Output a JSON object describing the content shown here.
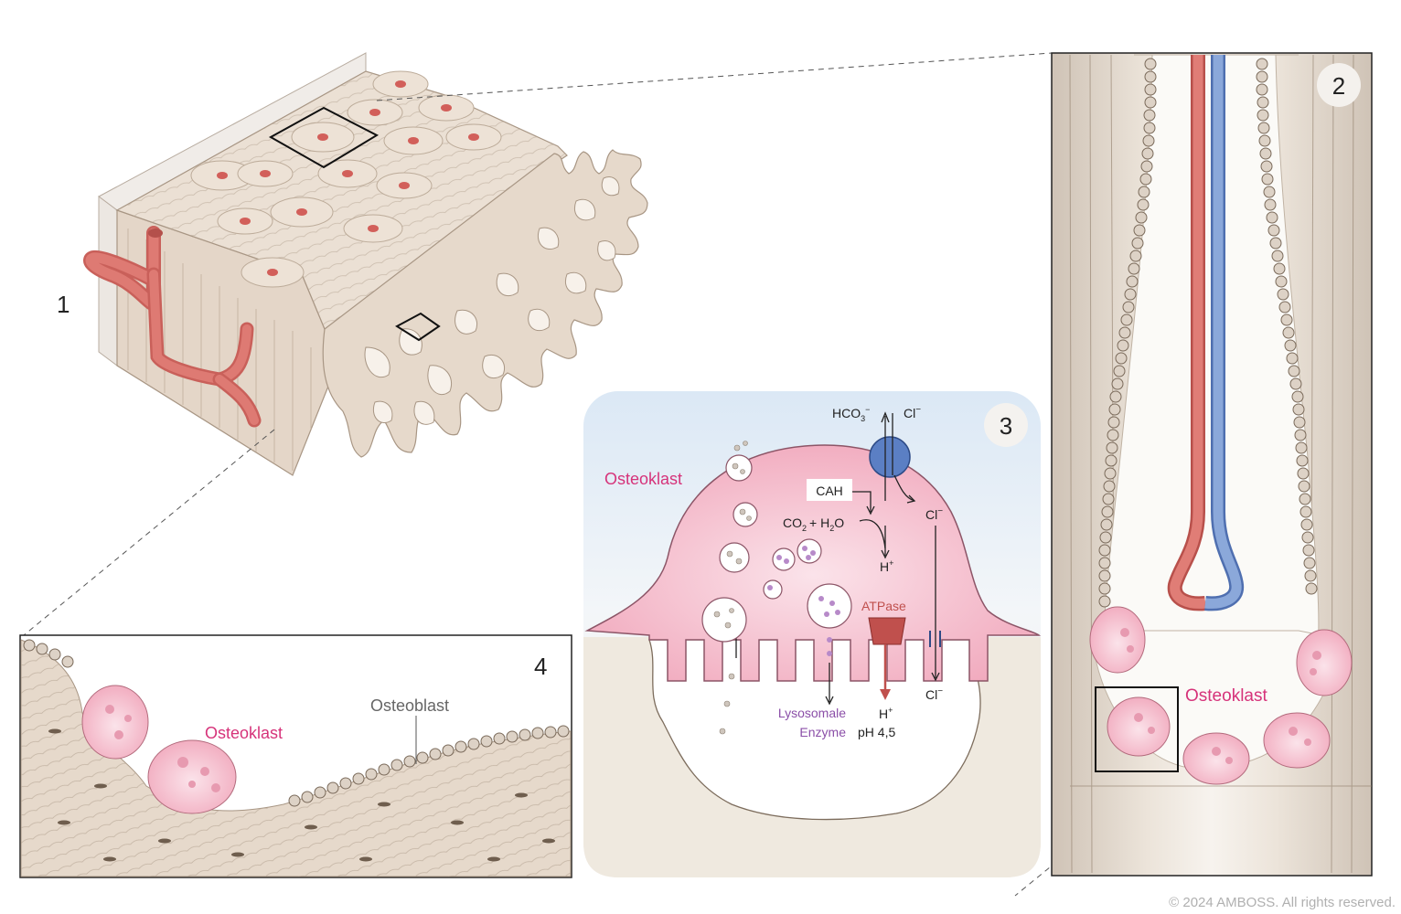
{
  "panels": {
    "p1": {
      "number": "1"
    },
    "p2": {
      "number": "2",
      "label_osteoclast": "Osteoklast"
    },
    "p3": {
      "number": "3",
      "label_osteoclast": "Osteoklast",
      "hco3_base": "HCO",
      "hco3_sub": "3",
      "hco3_sup": "−",
      "cl_top": "Cl",
      "cl_top_sup": "−",
      "cah": "CAH",
      "co2_base": "CO",
      "co2_sub": "2",
      "h2o_plus": "+ H",
      "h2o_sub": "2",
      "h2o_o": "O",
      "h_mid": "H",
      "h_mid_sup": "+",
      "atpase": "ATPase",
      "cl_right": "Cl",
      "cl_right_sup": "−",
      "cl_bottom": "Cl",
      "cl_bottom_sup": "−",
      "h_bottom": "H",
      "h_bottom_sup": "+",
      "ph": "pH 4,5",
      "lysosomal_line1": "Lysosomale",
      "lysosomal_line2": "Enzyme"
    },
    "p4": {
      "number": "4",
      "label_osteoclast": "Osteoklast",
      "label_osteoblast": "Osteoblast"
    }
  },
  "copyright": "© 2024 AMBOSS. All rights reserved.",
  "colors": {
    "bone": "#e9ddd0",
    "bone_line": "#a89684",
    "vessel_red": "#d9706a",
    "vessel_blue": "#7f9fd1",
    "osteoclast_pink": "#f3b7c8",
    "label_pink": "#d6337a",
    "enzyme_purple": "#8b4fa8",
    "atpase_red": "#c0504d",
    "pump_blue": "#5b7fc4"
  }
}
